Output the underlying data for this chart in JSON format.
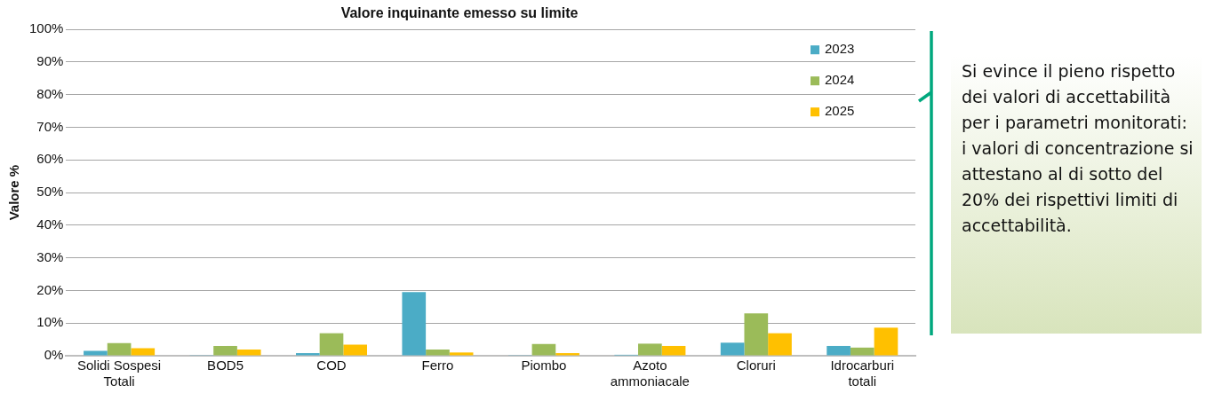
{
  "chart_data": {
    "type": "bar",
    "title": "Valore inquinante emesso su limite",
    "ylabel": "Valore %",
    "categories": [
      "Solidi Sospesi Totali",
      "BOD5",
      "COD",
      "Ferro",
      "Piombo",
      "Azoto ammoniacale",
      "Cloruri",
      "Idrocarburi totali"
    ],
    "series": [
      {
        "name": "2023",
        "color": "#4bacc6",
        "values": [
          1.5,
          0.2,
          0.8,
          19.5,
          0.2,
          0.3,
          4.0,
          3.0
        ]
      },
      {
        "name": "2024",
        "color": "#9bbb59",
        "values": [
          3.9,
          3.0,
          6.9,
          1.9,
          3.6,
          3.7,
          13.0,
          2.5
        ]
      },
      {
        "name": "2025",
        "color": "#ffc000",
        "values": [
          2.3,
          1.9,
          3.4,
          1.0,
          0.8,
          3.0,
          6.9,
          8.6
        ]
      }
    ],
    "ylim": [
      0,
      100
    ],
    "yticks": [
      {
        "value": 0,
        "label": "0%"
      },
      {
        "value": 10,
        "label": "10%"
      },
      {
        "value": 20,
        "label": "20%"
      },
      {
        "value": 30,
        "label": "30%"
      },
      {
        "value": 40,
        "label": "40%"
      },
      {
        "value": 50,
        "label": "50%"
      },
      {
        "value": 60,
        "label": "60%"
      },
      {
        "value": 70,
        "label": "70%"
      },
      {
        "value": 80,
        "label": "80%"
      },
      {
        "value": 90,
        "label": "90%"
      },
      {
        "value": 100,
        "label": "100%"
      }
    ],
    "grid": "y",
    "legend": "top right",
    "annotations": [
      "Si evince il pieno rispetto dei valori di accettabilità per i parametri monitorati: i valori di concentrazione si attestano al di sotto del 20% dei rispettivi limiti di accettabilità."
    ]
  }
}
